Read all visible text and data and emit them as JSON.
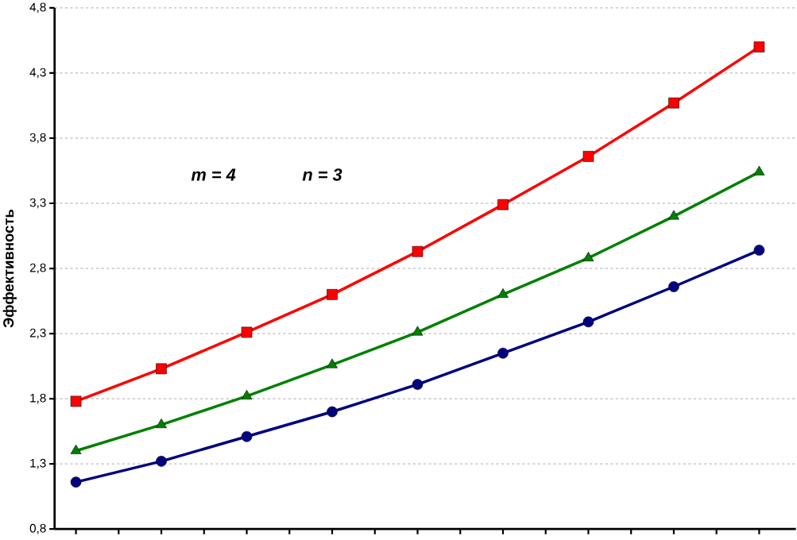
{
  "chart_data": {
    "type": "line",
    "ylabel": "Эффективность",
    "categories": [
      null,
      null,
      null,
      null,
      null,
      null,
      null,
      null,
      null
    ],
    "series": [
      {
        "color": "#ff0000",
        "marker": "square",
        "values": [
          1.78,
          2.03,
          2.31,
          2.6,
          2.93,
          3.29,
          3.66,
          4.07,
          4.5
        ]
      },
      {
        "color": "#008000",
        "marker": "triangle",
        "values": [
          1.4,
          1.6,
          1.82,
          2.06,
          2.31,
          2.6,
          2.88,
          3.2,
          3.54
        ]
      },
      {
        "color": "#000080",
        "marker": "circle",
        "values": [
          1.16,
          1.32,
          1.51,
          1.7,
          1.91,
          2.15,
          2.39,
          2.66,
          2.94
        ]
      }
    ],
    "ylim": [
      0.8,
      4.8
    ],
    "yticks": [
      {
        "value": 0.8,
        "label": "0,8"
      },
      {
        "value": 1.3,
        "label": "1,3"
      },
      {
        "value": 1.8,
        "label": "1,8"
      },
      {
        "value": 2.3,
        "label": "2,3"
      },
      {
        "value": 2.8,
        "label": "2,8"
      },
      {
        "value": 3.3,
        "label": "3,3"
      },
      {
        "value": 3.8,
        "label": "3,8"
      },
      {
        "value": 4.3,
        "label": "4,3"
      },
      {
        "value": 4.8,
        "label": "4,8"
      }
    ],
    "grid": "y",
    "line_style": "solid",
    "annotations": [
      "m = 4",
      "n = 3"
    ]
  }
}
